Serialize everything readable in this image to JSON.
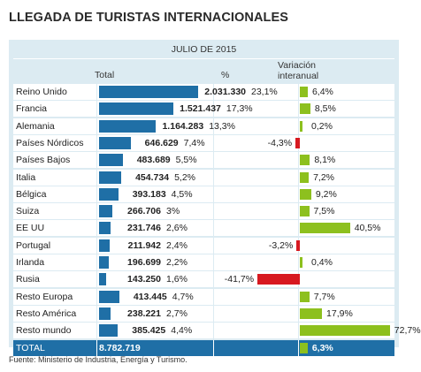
{
  "title": "LLEGADA DE TURISTAS INTERNACIONALES",
  "source": "Fuente: Ministerio de Industria, Energía y Turismo.",
  "colors": {
    "total_bar": "#1f6fa6",
    "positive": "#8dc01e",
    "negative": "#d71920",
    "panel": "#dcebf2"
  },
  "chart_data": {
    "type": "table",
    "header": {
      "period": "JULIO DE 2015",
      "total": "Total",
      "pct": "%",
      "var_line1": "Variación",
      "var_line2": "interanual"
    },
    "rows": [
      {
        "country": "Reino Unido",
        "total": 2031330,
        "total_label": "2.031.330",
        "pct_label": "23,1%",
        "var": 6.4,
        "var_label": "6,4%"
      },
      {
        "country": "Francia",
        "total": 1521437,
        "total_label": "1.521.437",
        "pct_label": "17,3%",
        "var": 8.5,
        "var_label": "8,5%"
      },
      {
        "country": "Alemania",
        "total": 1164283,
        "total_label": "1.164.283",
        "pct_label": "13,3%",
        "var": 0.2,
        "var_label": "0,2%"
      },
      {
        "country": "Países Nórdicos",
        "total": 646629,
        "total_label": "646.629",
        "pct_label": "7,4%",
        "var": -4.3,
        "var_label": "-4,3%"
      },
      {
        "country": "Países Bajos",
        "total": 483689,
        "total_label": "483.689",
        "pct_label": "5,5%",
        "var": 8.1,
        "var_label": "8,1%"
      },
      {
        "country": "Italia",
        "total": 454734,
        "total_label": "454.734",
        "pct_label": "5,2%",
        "var": 7.2,
        "var_label": "7,2%"
      },
      {
        "country": "Bélgica",
        "total": 393183,
        "total_label": "393.183",
        "pct_label": "4,5%",
        "var": 9.2,
        "var_label": "9,2%"
      },
      {
        "country": "Suiza",
        "total": 266706,
        "total_label": "266.706",
        "pct_label": "3%",
        "var": 7.5,
        "var_label": "7,5%"
      },
      {
        "country": "EE UU",
        "total": 231746,
        "total_label": "231.746",
        "pct_label": "2,6%",
        "var": 40.5,
        "var_label": "40,5%"
      },
      {
        "country": "Portugal",
        "total": 211942,
        "total_label": "211.942",
        "pct_label": "2,4%",
        "var": -3.2,
        "var_label": "-3,2%"
      },
      {
        "country": "Irlanda",
        "total": 196699,
        "total_label": "196.699",
        "pct_label": "2,2%",
        "var": 0.4,
        "var_label": "0,4%"
      },
      {
        "country": "Rusia",
        "total": 143250,
        "total_label": "143.250",
        "pct_label": "1,6%",
        "var": -41.7,
        "var_label": "-41,7%"
      },
      {
        "country": "Resto Europa",
        "total": 413445,
        "total_label": "413.445",
        "pct_label": "4,7%",
        "var": 7.7,
        "var_label": "7,7%"
      },
      {
        "country": "Resto América",
        "total": 238221,
        "total_label": "238.221",
        "pct_label": "2,7%",
        "var": 17.9,
        "var_label": "17,9%"
      },
      {
        "country": "Resto mundo",
        "total": 385425,
        "total_label": "385.425",
        "pct_label": "4,4%",
        "var": 72.7,
        "var_label": "72,7%"
      }
    ],
    "total_row": {
      "country": "TOTAL",
      "total": 8782719,
      "total_label": "8.782.719",
      "var": 6.3,
      "var_label": "6,3%"
    }
  }
}
